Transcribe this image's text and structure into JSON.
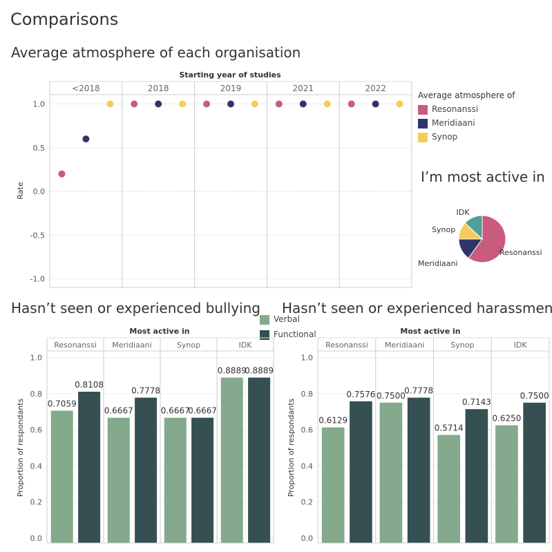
{
  "page_title": "Comparisons",
  "colors": {
    "resonanssi": "#C95B7D",
    "meridiaani": "#2E356B",
    "synop": "#F5CC5A",
    "idk": "#4E9E99",
    "verbal": "#84A98C",
    "functional": "#354F52"
  },
  "atmosphere_legend": {
    "title": "Average atmosphere of",
    "items": [
      "Resonanssi",
      "Meridiaani",
      "Synop"
    ]
  },
  "bar_legend": {
    "items": [
      "Verbal",
      "Functional"
    ]
  },
  "chart_data": [
    {
      "type": "scatter",
      "title": "Average atmosphere of each organisation",
      "panel_header": "Starting year of studies",
      "panels": [
        "<2018",
        "2018",
        "2019",
        "2021",
        "2022"
      ],
      "ylabel": "Rate",
      "ylim": [
        -1.1,
        1.2
      ],
      "yticks": [
        "1.0",
        "0.5",
        "0.0",
        "-0.5",
        "-1.0"
      ],
      "ytick_values": [
        1.0,
        0.5,
        0.0,
        -0.5,
        -1.0
      ],
      "series": [
        {
          "name": "Resonanssi",
          "values": [
            0.2,
            1.0,
            1.0,
            1.0,
            1.0
          ]
        },
        {
          "name": "Meridiaani",
          "values": [
            0.6,
            1.0,
            1.0,
            1.0,
            1.0
          ]
        },
        {
          "name": "Synop",
          "values": [
            1.0,
            1.0,
            1.0,
            1.0,
            1.0
          ]
        }
      ]
    },
    {
      "type": "pie",
      "title": "I’m most active in",
      "categories": [
        "Resonanssi",
        "Meridiaani",
        "Synop",
        "IDK"
      ],
      "values": [
        60,
        15,
        12,
        13
      ]
    },
    {
      "type": "bar",
      "title": "Hasn’t seen or experienced bullying",
      "panel_header": "Most active in",
      "categories": [
        "Resonanssi",
        "Meridiaani",
        "Synop",
        "IDK"
      ],
      "ylabel": "Proportion of respondants",
      "ylim": [
        0,
        1.0
      ],
      "yticks": [
        "1.0",
        "0.8",
        "0.6",
        "0.4",
        "0.2",
        "0.0"
      ],
      "ytick_values": [
        1.0,
        0.8,
        0.6,
        0.4,
        0.2,
        0.0
      ],
      "series": [
        {
          "name": "Verbal",
          "values": [
            0.7059,
            0.6667,
            0.6667,
            0.8889
          ],
          "labels": [
            "0.7059",
            "0.6667",
            "0.6667",
            "0.8889"
          ]
        },
        {
          "name": "Functional",
          "values": [
            0.8108,
            0.7778,
            0.6667,
            0.8889
          ],
          "labels": [
            "0.8108",
            "0.7778",
            "0.6667",
            "0.8889"
          ]
        }
      ]
    },
    {
      "type": "bar",
      "title": "Hasn’t seen or experienced harassment",
      "panel_header": "Most active in",
      "categories": [
        "Resonanssi",
        "Meridiaani",
        "Synop",
        "IDK"
      ],
      "ylabel": "Proportion of respondants",
      "ylim": [
        0,
        1.0
      ],
      "yticks": [
        "1.0",
        "0.8",
        "0.6",
        "0.4",
        "0.2",
        "0.0"
      ],
      "ytick_values": [
        1.0,
        0.8,
        0.6,
        0.4,
        0.2,
        0.0
      ],
      "series": [
        {
          "name": "Verbal",
          "values": [
            0.6129,
            0.75,
            0.5714,
            0.625
          ],
          "labels": [
            "0.6129",
            "0.7500",
            "0.5714",
            "0.6250"
          ]
        },
        {
          "name": "Functional",
          "values": [
            0.7576,
            0.7778,
            0.7143,
            0.75
          ],
          "labels": [
            "0.7576",
            "0.7778",
            "0.7143",
            "0.7500"
          ]
        }
      ]
    }
  ]
}
